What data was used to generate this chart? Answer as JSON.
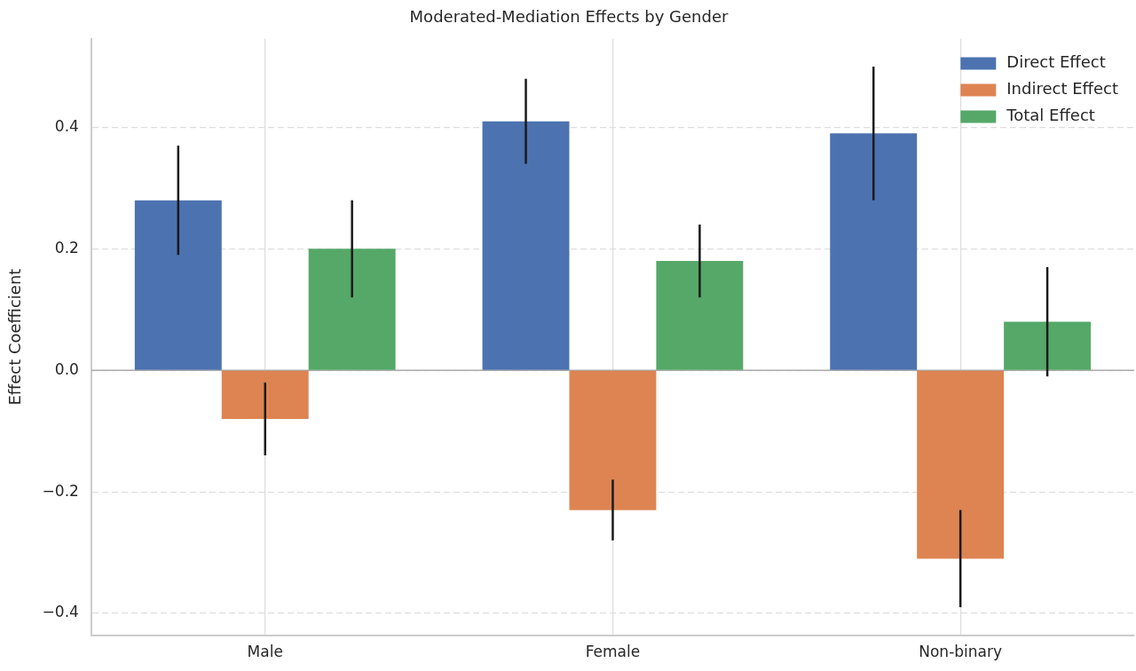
{
  "chart_data": {
    "type": "bar",
    "title": "Moderated-Mediation Effects by Gender",
    "ylabel": "Effect Coefficient",
    "categories": [
      "Male",
      "Female",
      "Non-binary"
    ],
    "series": [
      {
        "name": "Direct Effect",
        "color": "#4c72b0",
        "values": [
          0.28,
          0.41,
          0.39
        ],
        "errors": [
          0.09,
          0.07,
          0.11
        ]
      },
      {
        "name": "Indirect Effect",
        "color": "#dd8452",
        "values": [
          -0.08,
          -0.23,
          -0.31
        ],
        "errors": [
          0.06,
          0.05,
          0.08
        ]
      },
      {
        "name": "Total Effect",
        "color": "#55a868",
        "values": [
          0.2,
          0.18,
          0.08
        ],
        "errors": [
          0.08,
          0.06,
          0.09
        ]
      }
    ],
    "ylim": [
      -0.436,
      0.546
    ],
    "yticks": [
      {
        "value": -0.4,
        "label": "−0.4"
      },
      {
        "value": -0.2,
        "label": "−0.2"
      },
      {
        "value": 0,
        "label": "0.0"
      },
      {
        "value": 0.2,
        "label": "0.2"
      },
      {
        "value": 0.4,
        "label": "0.4"
      }
    ],
    "ref_lines": [
      {
        "axis": "y",
        "value": 0,
        "color": "#aaaaaa"
      }
    ],
    "grid": true,
    "legend": "top right"
  }
}
